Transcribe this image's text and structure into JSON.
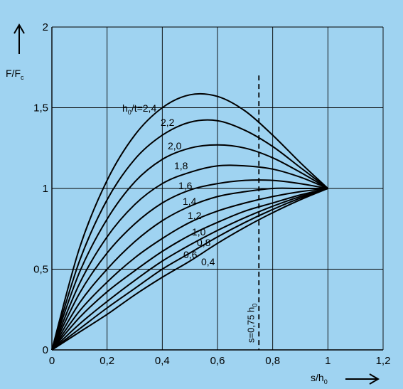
{
  "chart_data": {
    "type": "line",
    "background": "#9fd3f1",
    "plot_background": "#9fd3f1",
    "line_color": "#000000",
    "grid_color": "#000000",
    "grid": true,
    "xlim": [
      0,
      1.2
    ],
    "ylim": [
      0,
      2
    ],
    "x_ticks": [
      {
        "value": 0,
        "label": "0"
      },
      {
        "value": 0.2,
        "label": "0,2"
      },
      {
        "value": 0.4,
        "label": "0,4"
      },
      {
        "value": 0.6,
        "label": "0,6"
      },
      {
        "value": 0.8,
        "label": "0,8"
      },
      {
        "value": 1.0,
        "label": "1"
      },
      {
        "value": 1.2,
        "label": "1,2"
      }
    ],
    "y_ticks": [
      {
        "value": 0,
        "label": "0"
      },
      {
        "value": 0.5,
        "label": "0,5"
      },
      {
        "value": 1.0,
        "label": "1"
      },
      {
        "value": 1.5,
        "label": "1,5"
      },
      {
        "value": 2.0,
        "label": "2"
      }
    ],
    "xlabel": {
      "main": "s/h",
      "sub": "0"
    },
    "ylabel": {
      "main": "F/F",
      "sub": "c"
    },
    "series": [
      {
        "label": "h0/t=2,4",
        "label_main": "h",
        "label_sub": "0",
        "label_rest": "/t=2,4",
        "ratio": 2.4,
        "x": [
          0,
          0.1,
          0.2,
          0.3,
          0.4,
          0.5,
          0.6,
          0.7,
          0.8,
          0.9,
          1.0
        ],
        "y": [
          0,
          0.63,
          1.05,
          1.33,
          1.5,
          1.58,
          1.57,
          1.48,
          1.33,
          1.16,
          1.0
        ]
      },
      {
        "label": "2,2",
        "ratio": 2.2,
        "x": [
          0,
          0.1,
          0.2,
          0.3,
          0.4,
          0.5,
          0.6,
          0.7,
          0.8,
          0.9,
          1.0
        ],
        "y": [
          0,
          0.55,
          0.93,
          1.18,
          1.33,
          1.41,
          1.42,
          1.36,
          1.26,
          1.13,
          1.0
        ]
      },
      {
        "label": "2,0",
        "ratio": 2.0,
        "x": [
          0,
          0.1,
          0.2,
          0.3,
          0.4,
          0.5,
          0.6,
          0.7,
          0.8,
          0.9,
          1.0
        ],
        "y": [
          0,
          0.48,
          0.81,
          1.04,
          1.18,
          1.25,
          1.27,
          1.25,
          1.19,
          1.1,
          1.0
        ]
      },
      {
        "label": "1,8",
        "ratio": 1.8,
        "x": [
          0,
          0.1,
          0.2,
          0.3,
          0.4,
          0.5,
          0.6,
          0.7,
          0.8,
          0.9,
          1.0
        ],
        "y": [
          0,
          0.41,
          0.7,
          0.9,
          1.03,
          1.1,
          1.14,
          1.14,
          1.12,
          1.07,
          1.0
        ]
      },
      {
        "label": "1,6",
        "ratio": 1.6,
        "x": [
          0,
          0.1,
          0.2,
          0.3,
          0.4,
          0.5,
          0.6,
          0.7,
          0.8,
          0.9,
          1.0
        ],
        "y": [
          0,
          0.35,
          0.6,
          0.78,
          0.91,
          0.99,
          1.03,
          1.05,
          1.05,
          1.03,
          1.0
        ]
      },
      {
        "label": "1,4",
        "ratio": 1.4,
        "x": [
          0,
          0.1,
          0.2,
          0.3,
          0.4,
          0.5,
          0.6,
          0.7,
          0.8,
          0.9,
          1.0
        ],
        "y": [
          0,
          0.29,
          0.5,
          0.67,
          0.8,
          0.89,
          0.95,
          0.98,
          1.0,
          1.0,
          1.0
        ]
      },
      {
        "label": "1,2",
        "ratio": 1.2,
        "x": [
          0,
          0.1,
          0.2,
          0.3,
          0.4,
          0.5,
          0.6,
          0.7,
          0.8,
          0.9,
          1.0
        ],
        "y": [
          0,
          0.24,
          0.42,
          0.57,
          0.69,
          0.79,
          0.86,
          0.91,
          0.95,
          0.98,
          1.0
        ]
      },
      {
        "label": "1,0",
        "ratio": 1.0,
        "x": [
          0,
          0.1,
          0.2,
          0.3,
          0.4,
          0.5,
          0.6,
          0.7,
          0.8,
          0.9,
          1.0
        ],
        "y": [
          0,
          0.2,
          0.36,
          0.49,
          0.61,
          0.71,
          0.79,
          0.86,
          0.91,
          0.96,
          1.0
        ]
      },
      {
        "label": "0,8",
        "ratio": 0.8,
        "x": [
          0,
          0.1,
          0.2,
          0.3,
          0.4,
          0.5,
          0.6,
          0.7,
          0.8,
          0.9,
          1.0
        ],
        "y": [
          0,
          0.16,
          0.3,
          0.43,
          0.55,
          0.65,
          0.74,
          0.82,
          0.89,
          0.95,
          1.0
        ]
      },
      {
        "label": "0,6",
        "ratio": 0.6,
        "x": [
          0,
          0.1,
          0.2,
          0.3,
          0.4,
          0.5,
          0.6,
          0.7,
          0.8,
          0.9,
          1.0
        ],
        "y": [
          0,
          0.13,
          0.26,
          0.38,
          0.5,
          0.6,
          0.7,
          0.79,
          0.87,
          0.94,
          1.0
        ]
      },
      {
        "label": "0,4",
        "ratio": 0.4,
        "x": [
          0,
          0.1,
          0.2,
          0.3,
          0.4,
          0.5,
          0.6,
          0.7,
          0.8,
          0.9,
          1.0
        ],
        "y": [
          0,
          0.11,
          0.22,
          0.34,
          0.45,
          0.55,
          0.66,
          0.76,
          0.85,
          0.93,
          1.0
        ]
      }
    ],
    "annotations": [
      {
        "type": "vertical_dashed_line",
        "x": 0.75,
        "y_from": 0,
        "y_to": 1.7,
        "label_main": "s=0,75 h",
        "label_sub": "0"
      }
    ]
  }
}
